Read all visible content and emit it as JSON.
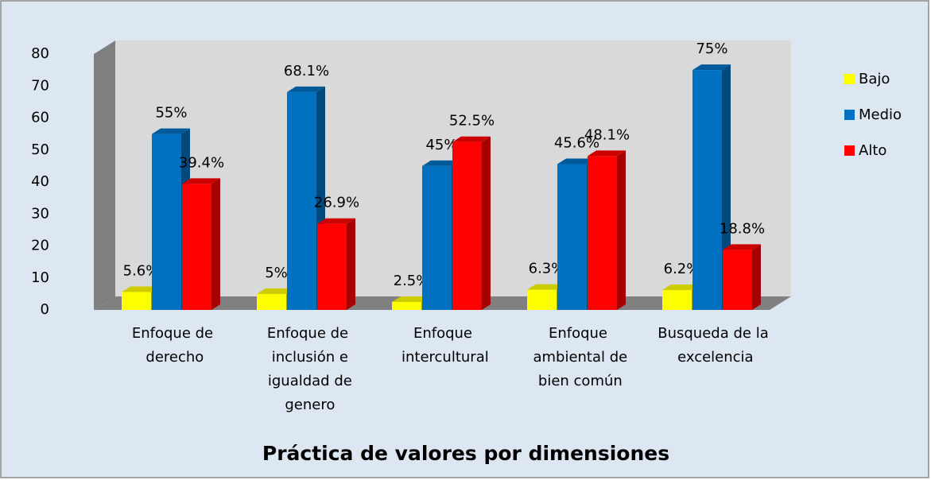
{
  "chart_data": {
    "type": "bar3d",
    "title": "Práctica de valores por dimensiones",
    "categories": [
      "Enfoque de derecho",
      "Enfoque de inclusión e igualdad de genero",
      "Enfoque intercultural",
      "Enfoque ambiental de bien común",
      "Busqueda de la excelencia"
    ],
    "series": [
      {
        "name": "Bajo",
        "color": "#ffff00",
        "values": [
          5.6,
          5,
          2.5,
          6.3,
          6.2
        ],
        "value_labels": [
          "5.6%",
          "5%",
          "2.5%",
          "6.3%",
          "6.2%"
        ]
      },
      {
        "name": "Medio",
        "color": "#0070c0",
        "values": [
          55,
          68.1,
          45,
          45.6,
          75
        ],
        "value_labels": [
          "55%",
          "68.1%",
          "45%",
          "45.6%",
          "75%"
        ]
      },
      {
        "name": "Alto",
        "color": "#ff0000",
        "values": [
          39.4,
          26.9,
          52.5,
          48.1,
          18.8
        ],
        "value_labels": [
          "39.4%",
          "26.9%",
          "52.5%",
          "48.1%",
          "18.8%"
        ]
      }
    ],
    "ylim": [
      0,
      80
    ],
    "yticks": [
      0,
      10,
      20,
      30,
      40,
      50,
      60,
      70,
      80
    ],
    "legend": "right",
    "grid": false
  }
}
